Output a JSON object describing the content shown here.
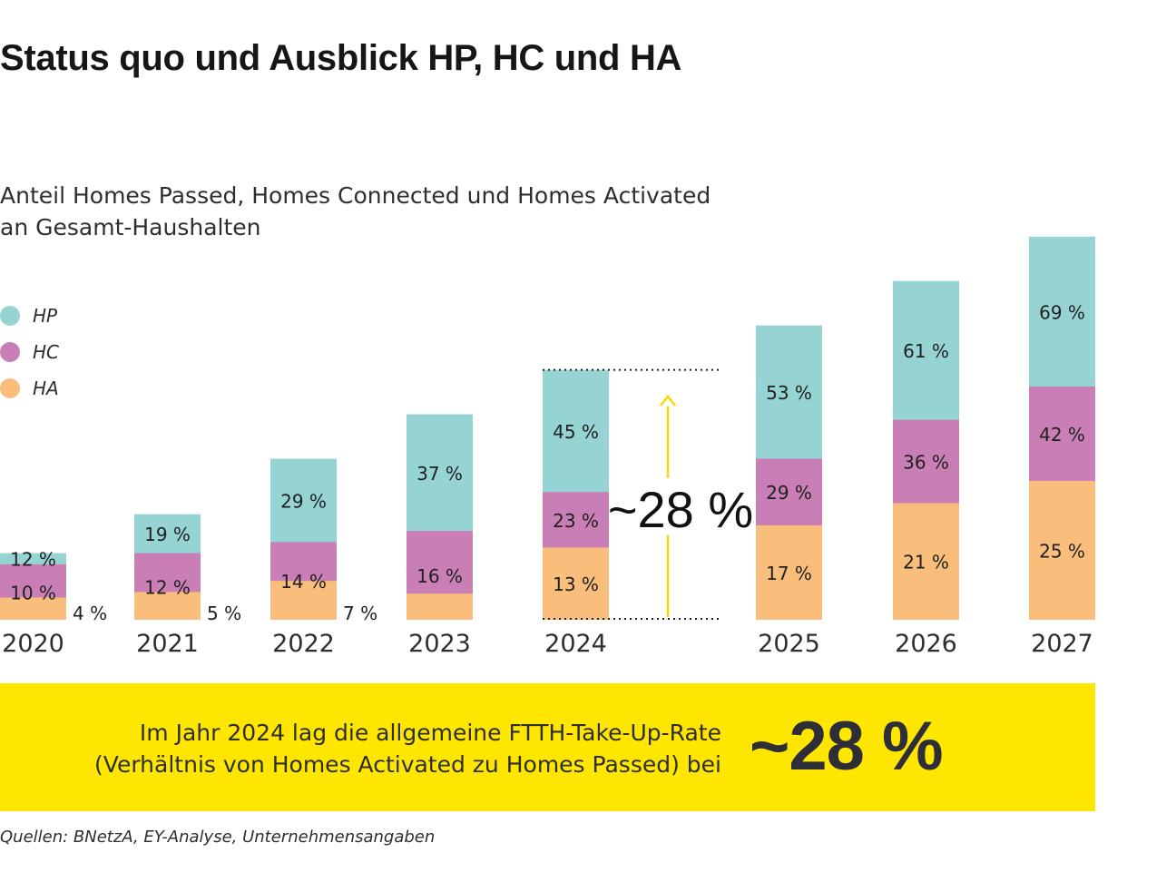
{
  "title": "Status quo und Ausblick HP, HC und HA",
  "subtitle": {
    "line1": "Anteil Homes Passed, Homes Connected und Homes Activated",
    "line2": "an Gesamt-Haushalten"
  },
  "colors": {
    "HP": "#96d4d4",
    "HC": "#c97fb5",
    "HA": "#f9be7b",
    "accent": "#ffe600",
    "text": "#2e2e2e"
  },
  "chart_data": {
    "type": "bar",
    "stacked": false,
    "categories": [
      "2020",
      "2021",
      "2022",
      "2023",
      "2024",
      "2025",
      "2026",
      "2027"
    ],
    "series": [
      {
        "name": "HP",
        "values": [
          12,
          19,
          29,
          37,
          45,
          53,
          61,
          69
        ]
      },
      {
        "name": "HC",
        "values": [
          10,
          12,
          14,
          16,
          23,
          29,
          36,
          42
        ]
      },
      {
        "name": "HA",
        "values": [
          4,
          5,
          7,
          null,
          13,
          17,
          21,
          25
        ]
      }
    ],
    "labels": {
      "HP": [
        "12 %",
        "19 %",
        "29 %",
        "37 %",
        "45 %",
        "53 %",
        "61 %",
        "69 %"
      ],
      "HC": [
        "10 %",
        "12 %",
        "14 %",
        "16 %",
        "23 %",
        "29 %",
        "36 %",
        "42 %"
      ],
      "HA": [
        "4 %",
        "5 %",
        "7 %",
        "",
        "13 %",
        "17 %",
        "21 %",
        "25 %"
      ]
    },
    "legend": [
      "HP",
      "HC",
      "HA"
    ],
    "annotation": {
      "year": "2024",
      "text": "~28 %"
    },
    "ylim": [
      0,
      80
    ]
  },
  "banner": {
    "line1": "Im Jahr 2024 lag die allgemeine FTTH-Take-Up-Rate",
    "line2": "(Verhältnis von Homes Activated zu Homes Passed) bei",
    "value": "~28 %"
  },
  "source": "Quellen: BNetzA, EY-Analyse, Unternehmensangaben"
}
